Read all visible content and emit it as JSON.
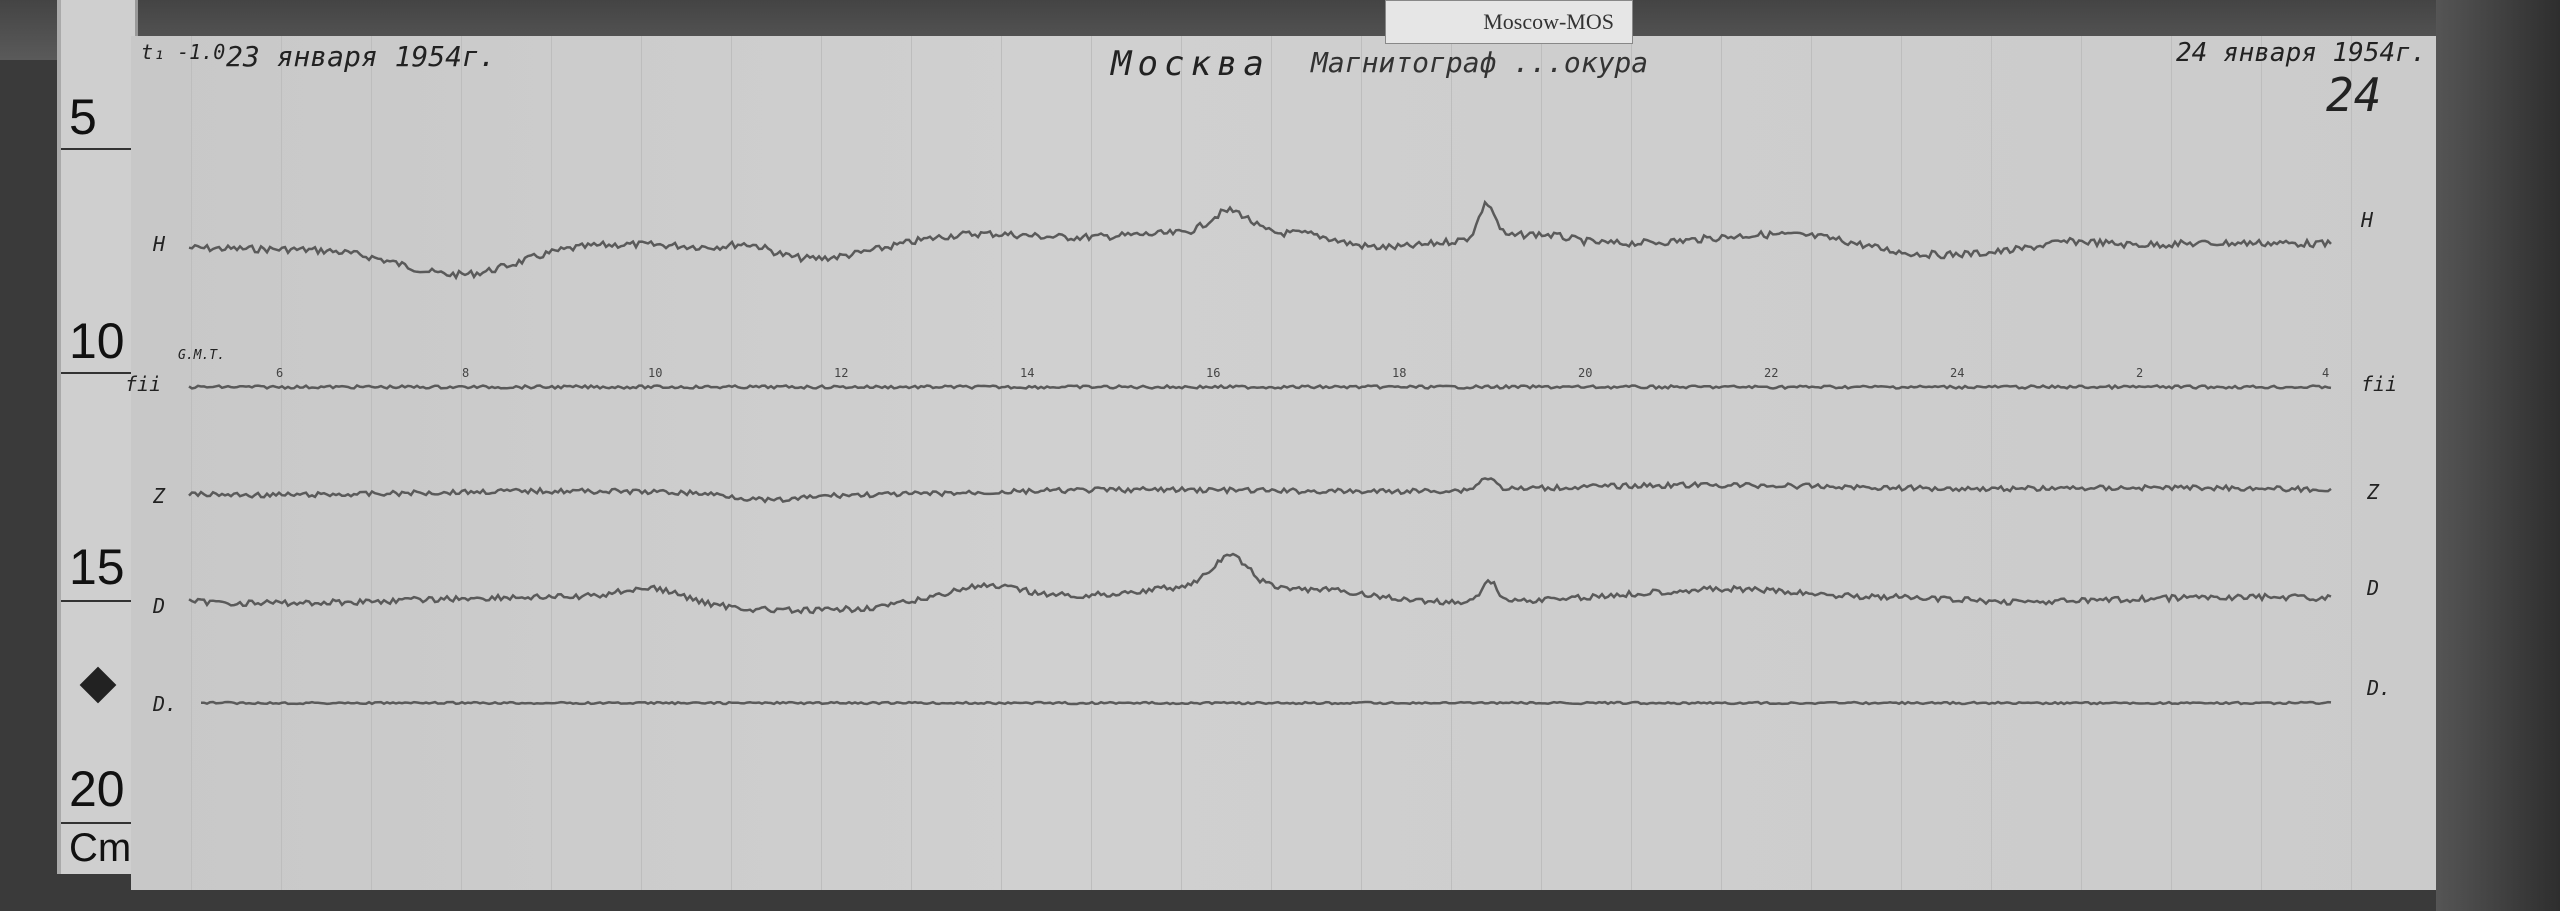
{
  "tag_label": "Moscow-MOS",
  "ruler": {
    "marks": [
      "5",
      "10",
      "15",
      "20"
    ],
    "unit": "Cm"
  },
  "header": {
    "left_note": "t₁ -1.0",
    "start_date": "23 января 1954г.",
    "title_city": "Москва",
    "title_rest": "Магнитограф ...окура",
    "end_date": "24 января 1954г.",
    "sheet_number": "24"
  },
  "time_axis": {
    "label": "G.M.T.",
    "ticks": [
      "6",
      "8",
      "10",
      "12",
      "14",
      "16",
      "18",
      "20",
      "22",
      "24",
      "2",
      "4"
    ]
  },
  "traces": {
    "left_labels": {
      "H": "H",
      "baseline": "fii",
      "Z": "Z",
      "D": "D",
      "D2": "D."
    },
    "right_labels": {
      "H": "H",
      "baseline": "fii",
      "Z": "Z",
      "D": "D",
      "D2": "D."
    }
  },
  "colors": {
    "paper": "#cccccc",
    "ink": "#555555",
    "frame": "#3a3a3a"
  }
}
